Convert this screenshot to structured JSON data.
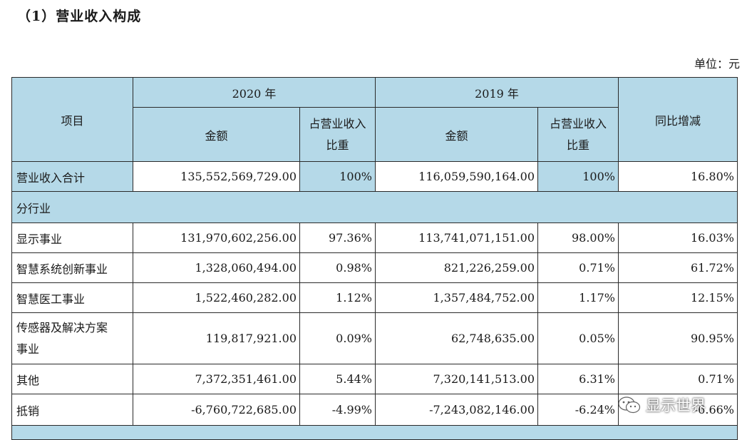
{
  "heading": "（1）营业收入构成",
  "unit": "单位：元",
  "header": {
    "item": "项目",
    "year_2020": "2020 年",
    "year_2019": "2019 年",
    "amount": "金额",
    "share_line1": "占营业收入",
    "share_line2": "比重",
    "yoy": "同比增减"
  },
  "total": {
    "label": "营业收入合计",
    "amount_2020": "135,552,569,729.00",
    "share_2020": "100%",
    "amount_2019": "116,059,590,164.00",
    "share_2019": "100%",
    "yoy": "16.80%"
  },
  "section": "分行业",
  "rows": [
    {
      "label": "显示事业",
      "amount_2020": "131,970,602,256.00",
      "share_2020": "97.36%",
      "amount_2019": "113,741,071,151.00",
      "share_2019": "98.00%",
      "yoy": "16.03%"
    },
    {
      "label": "智慧系统创新事业",
      "amount_2020": "1,328,060,494.00",
      "share_2020": "0.98%",
      "amount_2019": "821,226,259.00",
      "share_2019": "0.71%",
      "yoy": "61.72%"
    },
    {
      "label": "智慧医工事业",
      "amount_2020": "1,522,460,282.00",
      "share_2020": "1.12%",
      "amount_2019": "1,357,484,752.00",
      "share_2019": "1.17%",
      "yoy": "12.15%"
    },
    {
      "label_line1": "传感器及解决方案",
      "label_line2": "事业",
      "amount_2020": "119,817,921.00",
      "share_2020": "0.09%",
      "amount_2019": "62,748,635.00",
      "share_2019": "0.05%",
      "yoy": "90.95%"
    },
    {
      "label": "其他",
      "amount_2020": "7,372,351,461.00",
      "share_2020": "5.44%",
      "amount_2019": "7,320,141,513.00",
      "share_2019": "6.31%",
      "yoy": "0.71%"
    },
    {
      "label": "抵销",
      "amount_2020": "-6,760,722,685.00",
      "share_2020": "-4.99%",
      "amount_2019": "-7,243,082,146.00",
      "share_2019": "-6.24%",
      "yoy": "-6.66%"
    }
  ],
  "watermark": {
    "text": "显示世界",
    "icon": "wechat-icon"
  }
}
